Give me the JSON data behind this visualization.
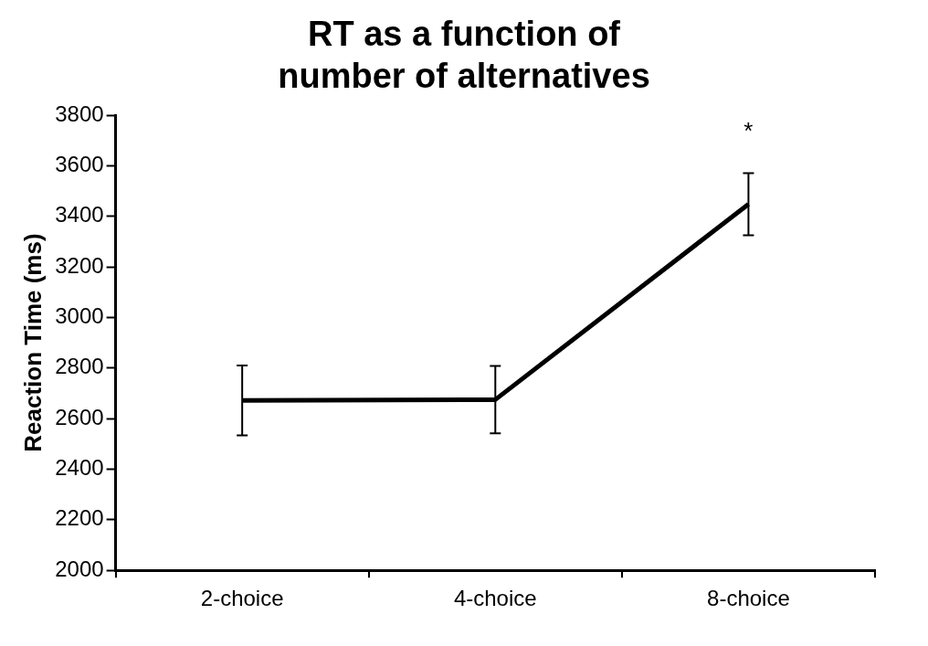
{
  "chart_data": {
    "type": "line",
    "title": "RT as a function of number of alternatives",
    "ylabel": "Reaction Time (ms)",
    "categories": [
      "2-choice",
      "4-choice",
      "8-choice"
    ],
    "series": [
      {
        "color": "#000000",
        "values": [
          2672,
          2675,
          3448
        ],
        "errors": [
          138,
          133,
          123
        ]
      }
    ],
    "ylim": [
      2000,
      3800
    ],
    "yticks": [
      2000,
      2200,
      2400,
      2600,
      2800,
      3000,
      3200,
      3400,
      3600,
      3800
    ],
    "grid": false,
    "legend": false,
    "marker": "none",
    "line_style": "solid",
    "annotations": [
      "*"
    ]
  }
}
